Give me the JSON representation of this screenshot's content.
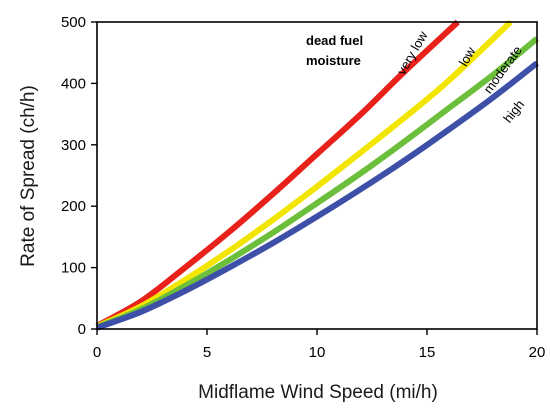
{
  "chart_data": {
    "type": "line",
    "xlabel": "Midflame Wind Speed (mi/h)",
    "ylabel": "Rate of Spread (ch/h)",
    "xlim": [
      0,
      20
    ],
    "ylim": [
      0,
      500
    ],
    "xticks": [
      0,
      5,
      10,
      15,
      20
    ],
    "yticks": [
      0,
      100,
      200,
      300,
      400,
      500
    ],
    "grid": false,
    "annotation": [
      "dead fuel",
      "moisture"
    ],
    "series": [
      {
        "name": "very low",
        "color": "#e8211b",
        "x": [
          0,
          2,
          4,
          6,
          8,
          10,
          12,
          14,
          16.4
        ],
        "y": [
          5,
          45,
          100,
          158,
          220,
          285,
          350,
          420,
          500
        ]
      },
      {
        "name": "low",
        "color": "#f2e600",
        "x": [
          0,
          2,
          4,
          6,
          8,
          10,
          12,
          14,
          16,
          18.8
        ],
        "y": [
          4,
          37,
          80,
          127,
          178,
          232,
          288,
          345,
          405,
          500
        ]
      },
      {
        "name": "moderate",
        "color": "#6cbf3a",
        "x": [
          0,
          2,
          4,
          6,
          8,
          10,
          12,
          14,
          16,
          18,
          20
        ],
        "y": [
          3,
          32,
          70,
          112,
          157,
          205,
          254,
          306,
          360,
          414,
          473
        ]
      },
      {
        "name": "high",
        "color": "#3e4fa8",
        "x": [
          0,
          2,
          4,
          6,
          8,
          10,
          12,
          14,
          16,
          18,
          20
        ],
        "y": [
          2,
          28,
          62,
          100,
          140,
          183,
          228,
          275,
          325,
          377,
          433
        ]
      }
    ]
  }
}
